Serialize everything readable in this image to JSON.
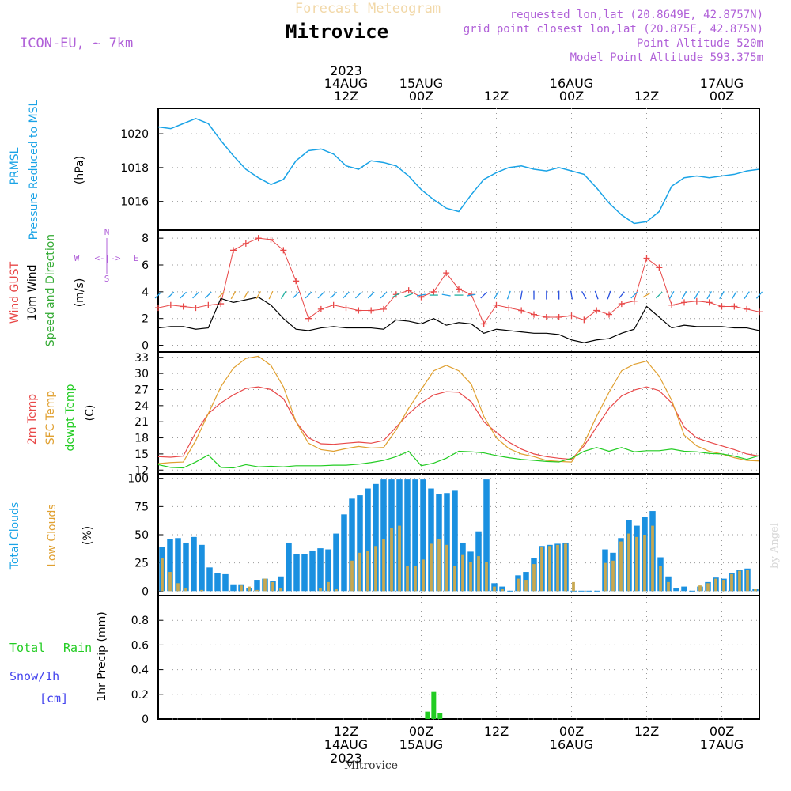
{
  "header": {
    "title": "Mitrovice",
    "subtitle": "Forecast Meteogram",
    "model": "ICON-EU, ~ 7km",
    "requested": "requested lon,lat (20.8649E, 42.8757N)",
    "gridpoint": "grid point closest lon,lat (20.875E, 42.875N)",
    "point_alt": "Point Altitude 520m",
    "model_alt": "Model Point Altitude 593.375m",
    "footer": "Mitrovice",
    "watermark": "by Angel"
  },
  "time_axis": {
    "start": "2023-08-13T06Z",
    "end": "2023-08-17T06Z",
    "top_labels": [
      {
        "at_hour": 30,
        "lines": [
          "2023",
          "14AUG",
          "12Z"
        ]
      },
      {
        "at_hour": 42,
        "lines": [
          "15AUG",
          "00Z"
        ]
      },
      {
        "at_hour": 54,
        "lines": [
          "12Z"
        ]
      },
      {
        "at_hour": 66,
        "lines": [
          "16AUG",
          "00Z"
        ]
      },
      {
        "at_hour": 78,
        "lines": [
          "12Z"
        ]
      },
      {
        "at_hour": 90,
        "lines": [
          "17AUG",
          "00Z"
        ]
      }
    ],
    "bottom_labels": [
      {
        "at_hour": 30,
        "lines": [
          "12Z",
          "14AUG",
          "2023"
        ]
      },
      {
        "at_hour": 42,
        "lines": [
          "00Z",
          "15AUG"
        ]
      },
      {
        "at_hour": 54,
        "lines": [
          "12Z"
        ]
      },
      {
        "at_hour": 66,
        "lines": [
          "00Z",
          "16AUG"
        ]
      },
      {
        "at_hour": 78,
        "lines": [
          "12Z"
        ]
      },
      {
        "at_hour": 90,
        "lines": [
          "00Z",
          "17AUG"
        ]
      }
    ]
  },
  "colors": {
    "pressure": "#1aa3e6",
    "gust": "#e84848",
    "wind": "#000000",
    "wind_arrows": "#33aa33",
    "temp2m": "#e84848",
    "sfc": "#e0a030",
    "dewpt": "#22cc22",
    "total_clouds": "#1a90e0",
    "low_clouds": "#c8a850",
    "rain": "#22cc22",
    "snow": "#4444ee",
    "model_text": "#b060d8",
    "title_faded": "#f2d8a8"
  },
  "panels": {
    "pressure": {
      "label1": "PRMSL",
      "label2": "Pressure Reduced to MSL",
      "unit": "(hPa)",
      "ticks": [
        "1016",
        "1018",
        "1020"
      ]
    },
    "wind": {
      "label1": "Wind GUST",
      "label2": "10m Wind",
      "label3": "Speed and Direction",
      "unit": "(m/s)",
      "ticks": [
        "0",
        "2",
        "4",
        "6",
        "8"
      ],
      "compass": {
        "n": "N",
        "s": "S",
        "w": "W",
        "e": "E",
        "arrow": "<-|->"
      }
    },
    "temp": {
      "label1": "2m Temp",
      "label2": "SFC Temp",
      "label3": "dewpt Temp",
      "unit": "(C)",
      "ticks": [
        "12",
        "15",
        "18",
        "21",
        "24",
        "27",
        "30",
        "33"
      ]
    },
    "clouds": {
      "label1": "Total Clouds",
      "label2": "Low Clouds",
      "unit": "(%)",
      "ticks": [
        "0",
        "25",
        "50",
        "75",
        "100"
      ]
    },
    "precip": {
      "label1": "Total",
      "label1b": "Rain",
      "label2": "Snow/1h",
      "label3": "[cm]",
      "unit": "1hr Precip (mm)",
      "ticks": [
        "0",
        "0.2",
        "0.4",
        "0.6",
        "0.8"
      ]
    }
  },
  "chart_data": [
    {
      "type": "line",
      "name": "PRMSL",
      "x_unit": "hours since 2023-08-13 06Z",
      "ylim": [
        1014.3,
        1021.5
      ],
      "x": [
        0,
        2,
        4,
        6,
        8,
        10,
        12,
        14,
        16,
        18,
        20,
        22,
        24,
        26,
        28,
        30,
        32,
        34,
        36,
        38,
        40,
        42,
        44,
        46,
        48,
        50,
        52,
        54,
        56,
        58,
        60,
        62,
        64,
        66,
        68,
        70,
        72,
        74,
        76,
        78,
        80,
        82,
        84,
        86,
        88,
        90,
        92,
        94,
        96
      ],
      "y": [
        1020.4,
        1020.3,
        1020.6,
        1020.9,
        1020.6,
        1019.6,
        1018.7,
        1017.9,
        1017.4,
        1017.0,
        1017.3,
        1018.4,
        1019.0,
        1019.1,
        1018.8,
        1018.1,
        1017.9,
        1018.4,
        1018.3,
        1018.1,
        1017.5,
        1016.7,
        1016.1,
        1015.6,
        1015.4,
        1016.4,
        1017.3,
        1017.7,
        1018.0,
        1018.1,
        1017.9,
        1017.8,
        1018.0,
        1017.8,
        1017.6,
        1016.8,
        1015.9,
        1015.2,
        1014.7,
        1014.8,
        1015.4,
        1016.9,
        1017.4,
        1017.5,
        1017.4,
        1017.5,
        1017.6,
        1017.8,
        1017.9
      ]
    },
    {
      "type": "line",
      "name": "Wind GUST / 10m Wind",
      "ylim": [
        -0.5,
        8.6
      ],
      "x": [
        0,
        2,
        4,
        6,
        8,
        10,
        12,
        14,
        16,
        18,
        20,
        22,
        24,
        26,
        28,
        30,
        32,
        34,
        36,
        38,
        40,
        42,
        44,
        46,
        48,
        50,
        52,
        54,
        56,
        58,
        60,
        62,
        64,
        66,
        68,
        70,
        72,
        74,
        76,
        78,
        80,
        82,
        84,
        86,
        88,
        90,
        92,
        94,
        96
      ],
      "series": [
        {
          "name": "Wind GUST",
          "y": [
            2.8,
            3.0,
            2.9,
            2.8,
            3.0,
            3.1,
            7.1,
            7.6,
            8.0,
            7.9,
            7.1,
            4.8,
            2.0,
            2.7,
            3.0,
            2.8,
            2.6,
            2.6,
            2.7,
            3.8,
            4.1,
            3.6,
            4.0,
            5.4,
            4.2,
            3.8,
            1.6,
            3.0,
            2.8,
            2.6,
            2.3,
            2.1,
            2.1,
            2.2,
            1.9,
            2.6,
            2.3,
            3.1,
            3.3,
            6.5,
            5.8,
            3.0,
            3.2,
            3.3,
            3.2,
            2.9,
            2.9,
            2.7,
            2.5
          ]
        },
        {
          "name": "10m Wind",
          "y": [
            1.3,
            1.4,
            1.4,
            1.2,
            1.3,
            3.5,
            3.2,
            3.4,
            3.6,
            3.0,
            2.0,
            1.2,
            1.1,
            1.3,
            1.4,
            1.3,
            1.3,
            1.3,
            1.2,
            1.9,
            1.8,
            1.6,
            2.0,
            1.5,
            1.7,
            1.6,
            0.9,
            1.2,
            1.1,
            1.0,
            0.9,
            0.9,
            0.8,
            0.4,
            0.2,
            0.4,
            0.5,
            0.9,
            1.2,
            2.9,
            2.1,
            1.3,
            1.5,
            1.4,
            1.4,
            1.4,
            1.3,
            1.3,
            1.1
          ]
        }
      ],
      "wind_dir_deg": [
        45,
        45,
        45,
        45,
        45,
        45,
        30,
        30,
        30,
        25,
        30,
        45,
        45,
        45,
        45,
        45,
        45,
        45,
        45,
        60,
        70,
        80,
        90,
        100,
        90,
        80,
        45,
        30,
        20,
        10,
        0,
        0,
        0,
        350,
        330,
        340,
        20,
        40,
        45,
        60,
        45,
        30,
        30,
        30,
        30,
        30,
        30,
        35,
        40
      ]
    },
    {
      "type": "line",
      "name": "Temperature",
      "ylim": [
        11.3,
        34.0
      ],
      "x": [
        0,
        2,
        4,
        6,
        8,
        10,
        12,
        14,
        16,
        18,
        20,
        22,
        24,
        26,
        28,
        30,
        32,
        34,
        36,
        38,
        40,
        42,
        44,
        46,
        48,
        50,
        52,
        54,
        56,
        58,
        60,
        62,
        64,
        66,
        68,
        70,
        72,
        74,
        76,
        78,
        80,
        82,
        84,
        86,
        88,
        90,
        92,
        94,
        96
      ],
      "series": [
        {
          "name": "2m Temp",
          "y": [
            14.5,
            14.4,
            14.6,
            19.0,
            22.5,
            24.5,
            26.0,
            27.2,
            27.5,
            27.0,
            25.3,
            21.0,
            18.0,
            16.9,
            16.8,
            17.0,
            17.2,
            17.0,
            17.5,
            20.0,
            22.5,
            24.5,
            26.0,
            26.6,
            26.5,
            24.7,
            21.0,
            19.0,
            17.2,
            15.9,
            15.0,
            14.5,
            14.2,
            14.0,
            16.5,
            20.0,
            23.5,
            25.8,
            26.9,
            27.5,
            26.8,
            24.5,
            20.0,
            18.0,
            17.2,
            16.5,
            15.8,
            15.0,
            14.6
          ]
        },
        {
          "name": "SFC Temp",
          "y": [
            13.2,
            13.4,
            13.5,
            17.5,
            22.5,
            27.5,
            31.0,
            32.8,
            33.2,
            31.5,
            27.5,
            21.0,
            17.0,
            15.8,
            15.5,
            16.0,
            16.4,
            16.1,
            16.2,
            19.5,
            23.5,
            27.0,
            30.5,
            31.5,
            30.5,
            28.0,
            22.0,
            18.0,
            16.0,
            15.0,
            14.5,
            13.8,
            13.6,
            13.5,
            17.0,
            22.0,
            26.5,
            30.5,
            31.7,
            32.3,
            29.5,
            25.0,
            18.5,
            16.5,
            15.5,
            15.0,
            14.3,
            13.8,
            13.7
          ]
        },
        {
          "name": "dewpt Temp",
          "y": [
            13.0,
            12.5,
            12.4,
            13.5,
            14.8,
            12.5,
            12.4,
            13.0,
            12.6,
            12.7,
            12.6,
            12.8,
            12.8,
            12.8,
            12.9,
            12.9,
            13.1,
            13.4,
            13.8,
            14.5,
            15.5,
            12.8,
            13.3,
            14.2,
            15.5,
            15.4,
            15.2,
            14.7,
            14.3,
            14.0,
            13.8,
            13.6,
            13.5,
            14.2,
            15.5,
            16.2,
            15.5,
            16.2,
            15.4,
            15.6,
            15.6,
            15.9,
            15.5,
            15.4,
            15.1,
            15.0,
            14.6,
            14.0,
            14.7
          ]
        }
      ]
    },
    {
      "type": "bar",
      "name": "Clouds",
      "ylim": [
        -4,
        104
      ],
      "series": [
        {
          "name": "Total Clouds",
          "values": [
            39,
            46,
            47,
            43,
            48,
            41,
            21,
            16,
            15,
            6,
            6,
            3,
            10,
            11,
            9,
            13,
            43,
            33,
            33,
            36,
            38,
            37,
            51,
            68,
            82,
            85,
            91,
            95,
            99,
            99,
            99,
            99,
            99,
            99,
            91,
            86,
            87,
            89,
            43,
            35,
            53,
            99,
            7,
            4,
            0,
            14,
            17,
            29,
            40,
            41,
            42,
            43,
            0,
            0,
            0,
            0,
            37,
            34,
            47,
            63,
            58,
            66,
            71,
            30,
            13,
            3,
            4,
            0,
            4,
            8,
            12,
            11,
            16,
            19,
            20,
            2
          ]
        },
        {
          "name": "Low Clouds",
          "values": [
            29,
            17,
            7,
            3,
            0,
            1,
            0,
            0,
            0,
            0,
            5,
            4,
            1,
            11,
            8,
            3,
            0,
            0,
            0,
            0,
            3,
            8,
            2,
            0,
            27,
            34,
            36,
            40,
            46,
            56,
            58,
            22,
            22,
            28,
            42,
            46,
            41,
            22,
            32,
            26,
            31,
            26,
            4,
            2,
            0,
            11,
            10,
            24,
            39,
            40,
            41,
            42,
            8,
            0,
            0,
            0,
            25,
            27,
            44,
            51,
            48,
            50,
            58,
            22,
            8,
            0,
            0,
            0,
            5,
            7,
            11,
            10,
            15,
            18,
            19,
            2
          ]
        }
      ]
    },
    {
      "type": "bar",
      "name": "1hr Precip",
      "ylim": [
        0,
        1.0
      ],
      "series": [
        {
          "name": "Total Rain",
          "x": [
            43,
            44,
            45
          ],
          "values": [
            0.06,
            0.22,
            0.05
          ]
        }
      ]
    }
  ]
}
